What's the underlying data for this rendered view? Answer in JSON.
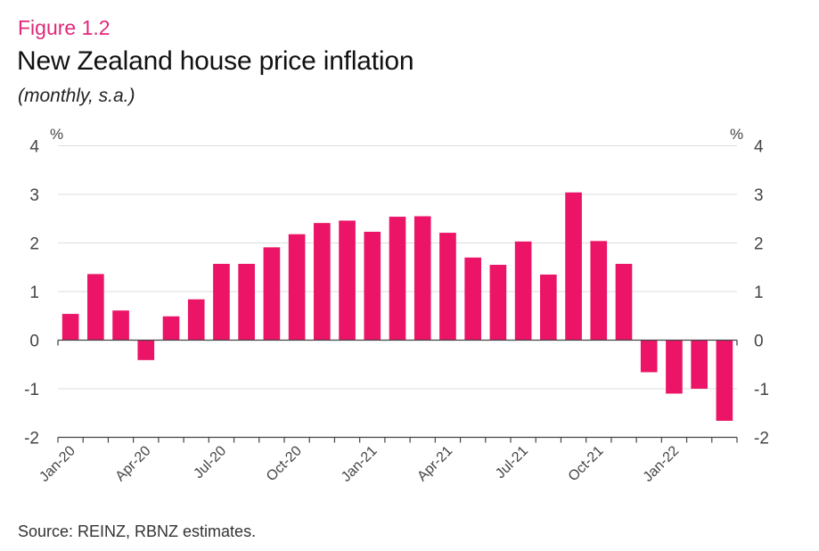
{
  "figure": {
    "label": "Figure 1.2",
    "title": "New Zealand house price inflation",
    "subtitle": "(monthly, s.a.)",
    "source": "Source: REINZ, RBNZ estimates."
  },
  "colors": {
    "bar": "#eb1466",
    "figure_label": "#e0287a",
    "grid": "#dddddd",
    "axis": "#444444"
  },
  "chart_data": {
    "type": "bar",
    "title": "New Zealand house price inflation",
    "subtitle": "(monthly, s.a.)",
    "xlabel": "",
    "ylabel_left": "%",
    "ylabel_right": "%",
    "ylim": [
      -2,
      4
    ],
    "yticks": [
      4,
      3,
      2,
      1,
      0,
      -1,
      -2
    ],
    "grid": true,
    "legend": "none",
    "categories": [
      "Jan-20",
      "Feb-20",
      "Mar-20",
      "Apr-20",
      "May-20",
      "Jun-20",
      "Jul-20",
      "Aug-20",
      "Sep-20",
      "Oct-20",
      "Nov-20",
      "Dec-20",
      "Jan-21",
      "Feb-21",
      "Mar-21",
      "Apr-21",
      "May-21",
      "Jun-21",
      "Jul-21",
      "Aug-21",
      "Sep-21",
      "Oct-21",
      "Nov-21",
      "Dec-21",
      "Jan-22",
      "Feb-22",
      "Mar-22"
    ],
    "x_tick_labels": [
      "Jan-20",
      "Apr-20",
      "Jul-20",
      "Oct-20",
      "Jan-21",
      "Apr-21",
      "Jul-21",
      "Oct-21",
      "Jan-22"
    ],
    "x_tick_label_every": 3,
    "series": [
      {
        "name": "House price inflation",
        "values": [
          0.54,
          1.36,
          0.61,
          -0.41,
          0.49,
          0.84,
          1.57,
          1.57,
          1.91,
          2.18,
          2.41,
          2.46,
          2.23,
          2.54,
          2.55,
          2.21,
          1.7,
          1.55,
          2.03,
          1.35,
          3.04,
          2.04,
          1.57,
          -0.66,
          -1.1,
          -1.0,
          -1.66
        ]
      }
    ]
  }
}
